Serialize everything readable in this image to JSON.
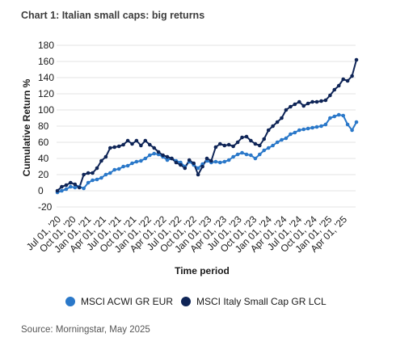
{
  "title": "Chart 1: Italian small caps: big returns",
  "source": "Source: Morningstar, May 2025",
  "chart_data": {
    "type": "line",
    "xlabel": "Time period",
    "ylabel": "Cumulative Return %",
    "ylim": [
      -20,
      180
    ],
    "y_ticks": [
      -20,
      0,
      20,
      40,
      60,
      80,
      100,
      120,
      140,
      160,
      180
    ],
    "grid": "horizontal",
    "legend_position": "bottom",
    "x_tick_labels": [
      "Jul 01, '20",
      "Oct 01, '20",
      "Jan 01, '21",
      "Apr 01, '21",
      "Jul 01, '21",
      "Oct 01, '21",
      "Jan 01, '22",
      "Apr 01, '22",
      "Jul 01, '22",
      "Oct 01, '22",
      "Jan 01, '23",
      "Apr 01, '23",
      "Jul 01, '23",
      "Oct 01, '23",
      "Jan 01, '24",
      "Apr 01, '24",
      "Jul 01, '24",
      "Oct 01, '24",
      "Jan 01, '25",
      "Apr 01, '25"
    ],
    "series": [
      {
        "name": "MSCI ACWI GR EUR",
        "color": "#2a78c9",
        "values": [
          -2,
          0,
          2,
          5,
          4,
          5,
          3,
          10,
          13,
          14,
          16,
          20,
          22,
          26,
          27,
          30,
          31,
          34,
          36,
          37,
          40,
          44,
          46,
          45,
          42,
          38,
          40,
          37,
          35,
          30,
          36,
          32,
          28,
          33,
          37,
          35,
          36,
          35,
          36,
          38,
          42,
          45,
          47,
          45,
          44,
          40,
          45,
          50,
          53,
          56,
          60,
          63,
          65,
          70,
          72,
          75,
          76,
          77,
          78,
          79,
          80,
          82,
          90,
          92,
          94,
          93,
          82,
          75,
          85
        ]
      },
      {
        "name": "MSCI Italy Small Cap GR LCL",
        "color": "#0f2557",
        "values": [
          0,
          5,
          7,
          10,
          8,
          4,
          20,
          22,
          22,
          28,
          37,
          42,
          53,
          54,
          55,
          57,
          62,
          58,
          62,
          56,
          62,
          57,
          53,
          48,
          44,
          42,
          40,
          35,
          32,
          28,
          38,
          34,
          20,
          30,
          40,
          37,
          54,
          58,
          56,
          57,
          55,
          60,
          66,
          67,
          62,
          58,
          56,
          64,
          75,
          80,
          85,
          90,
          100,
          104,
          107,
          110,
          105,
          108,
          110,
          110,
          111,
          112,
          118,
          125,
          130,
          138,
          136,
          142,
          162
        ]
      }
    ]
  }
}
